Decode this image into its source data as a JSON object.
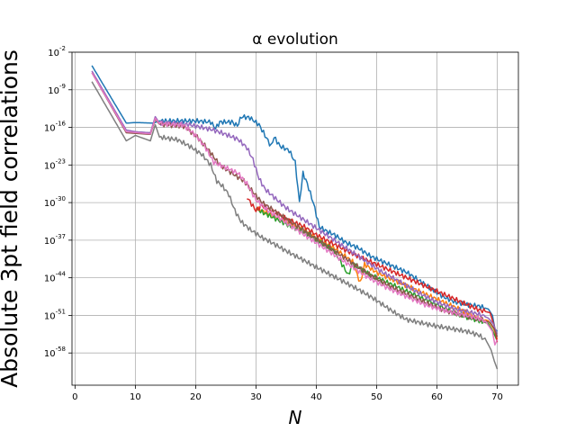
{
  "chart_data": {
    "type": "line",
    "title": "α evolution",
    "xlabel": "N",
    "ylabel": "Absolute 3pt field correlations",
    "xlim": [
      -0.5,
      73.5
    ],
    "ylim": [
      -64,
      -2
    ],
    "y_scale": "log10",
    "grid": true,
    "x_ticks": [
      0,
      10,
      20,
      30,
      40,
      50,
      60,
      70
    ],
    "y_ticks": [
      {
        "value": -2,
        "base": "10",
        "exp": "-2"
      },
      {
        "value": -9,
        "base": "10",
        "exp": "-9"
      },
      {
        "value": -16,
        "base": "10",
        "exp": "-16"
      },
      {
        "value": -23,
        "base": "10",
        "exp": "-23"
      },
      {
        "value": -30,
        "base": "10",
        "exp": "-30"
      },
      {
        "value": -37,
        "base": "10",
        "exp": "-37"
      },
      {
        "value": -44,
        "base": "10",
        "exp": "-44"
      },
      {
        "value": -51,
        "base": "10",
        "exp": "-51"
      },
      {
        "value": -58,
        "base": "10",
        "exp": "-58"
      }
    ],
    "series": [
      {
        "color": "#1f77b4",
        "points": [
          [
            2.8,
            -4.5
          ],
          [
            8.5,
            -15.2
          ],
          [
            10,
            -15.1
          ],
          [
            13,
            -15.2
          ],
          [
            14,
            -14.8
          ],
          [
            20,
            -14.8
          ],
          [
            22.5,
            -15
          ],
          [
            23.3,
            -16.2
          ],
          [
            24,
            -15
          ],
          [
            26,
            -15
          ],
          [
            26.9,
            -15.7
          ],
          [
            27.6,
            -14
          ],
          [
            29,
            -14.2
          ],
          [
            30.5,
            -15.5
          ],
          [
            31.5,
            -17.5
          ],
          [
            32.5,
            -19.5
          ],
          [
            33,
            -17.8
          ],
          [
            34,
            -19.5
          ],
          [
            35.5,
            -20.3
          ],
          [
            36.5,
            -22.5
          ],
          [
            37.2,
            -30
          ],
          [
            37.8,
            -24.5
          ],
          [
            38.5,
            -26.5
          ],
          [
            39.5,
            -30
          ],
          [
            40.5,
            -34.5
          ],
          [
            41.5,
            -35.2
          ],
          [
            43,
            -36
          ],
          [
            45,
            -37.5
          ],
          [
            47,
            -38.5
          ],
          [
            49,
            -40
          ],
          [
            51,
            -41
          ],
          [
            53,
            -42
          ],
          [
            55,
            -43
          ],
          [
            57,
            -44.5
          ],
          [
            59,
            -46
          ],
          [
            61,
            -47.5
          ],
          [
            63,
            -48.5
          ],
          [
            65,
            -49
          ],
          [
            67,
            -49.3
          ],
          [
            68.5,
            -49.8
          ],
          [
            69.2,
            -51
          ],
          [
            69.6,
            -53.5
          ],
          [
            70,
            -54
          ]
        ]
      },
      {
        "color": "#ff7f0e",
        "points": [
          [
            30,
            -31
          ],
          [
            32,
            -32
          ],
          [
            35,
            -33.5
          ],
          [
            38,
            -35
          ],
          [
            40,
            -36.5
          ],
          [
            43,
            -38.5
          ],
          [
            46,
            -41
          ],
          [
            47.3,
            -45
          ],
          [
            48,
            -41.5
          ],
          [
            50,
            -43
          ],
          [
            53,
            -44.5
          ],
          [
            56,
            -46
          ],
          [
            59,
            -47.5
          ],
          [
            62,
            -49
          ],
          [
            65,
            -50.5
          ],
          [
            67,
            -51.5
          ],
          [
            68.5,
            -52
          ],
          [
            69.4,
            -53.5
          ],
          [
            70,
            -55.5
          ]
        ]
      },
      {
        "color": "#2ca02c",
        "points": [
          [
            30,
            -31.2
          ],
          [
            32,
            -32.3
          ],
          [
            35,
            -34
          ],
          [
            38,
            -35.5
          ],
          [
            40,
            -37
          ],
          [
            43,
            -39
          ],
          [
            45.3,
            -43.5
          ],
          [
            46,
            -41.5
          ],
          [
            49,
            -43.5
          ],
          [
            52,
            -45
          ],
          [
            55,
            -46.5
          ],
          [
            58,
            -48
          ],
          [
            61,
            -49.5
          ],
          [
            64,
            -51
          ],
          [
            67,
            -52
          ],
          [
            68.5,
            -52.5
          ],
          [
            69.3,
            -54
          ],
          [
            70,
            -55.8
          ]
        ]
      },
      {
        "color": "#d62728",
        "points": [
          [
            28.5,
            -29
          ],
          [
            30,
            -31.5
          ],
          [
            31,
            -30.5
          ],
          [
            33,
            -31.8
          ],
          [
            35,
            -33
          ],
          [
            38,
            -34.5
          ],
          [
            40,
            -36
          ],
          [
            43,
            -37.8
          ],
          [
            46,
            -39.5
          ],
          [
            49,
            -41
          ],
          [
            52,
            -42.5
          ],
          [
            55,
            -44
          ],
          [
            58,
            -45.5
          ],
          [
            61,
            -47
          ],
          [
            64,
            -48.5
          ],
          [
            67,
            -50
          ],
          [
            68.8,
            -50.5
          ],
          [
            69.5,
            -53
          ],
          [
            70,
            -56
          ]
        ]
      },
      {
        "color": "#9467bd",
        "points": [
          [
            2.8,
            -5.5
          ],
          [
            8.5,
            -16.5
          ],
          [
            10,
            -16.8
          ],
          [
            12.5,
            -17
          ],
          [
            13.3,
            -14
          ],
          [
            14,
            -15.2
          ],
          [
            17,
            -15.3
          ],
          [
            19,
            -15.5
          ],
          [
            21,
            -16
          ],
          [
            23,
            -16.5
          ],
          [
            25,
            -17.3
          ],
          [
            27,
            -18.2
          ],
          [
            28.5,
            -19.8
          ],
          [
            29.5,
            -22
          ],
          [
            30.5,
            -25.5
          ],
          [
            31.5,
            -27.5
          ],
          [
            33,
            -29
          ],
          [
            35,
            -31
          ],
          [
            37,
            -32.5
          ],
          [
            39,
            -34
          ],
          [
            41,
            -35.5
          ],
          [
            43,
            -37
          ],
          [
            45,
            -38.5
          ],
          [
            47,
            -40
          ],
          [
            49,
            -41.5
          ],
          [
            51,
            -43
          ],
          [
            53,
            -44.2
          ],
          [
            55,
            -45.5
          ],
          [
            57,
            -46.8
          ],
          [
            59,
            -48
          ],
          [
            61,
            -49
          ],
          [
            63,
            -49.8
          ],
          [
            65,
            -50.3
          ],
          [
            67,
            -50.8
          ],
          [
            68.5,
            -51.5
          ],
          [
            69.3,
            -52.5
          ],
          [
            70,
            -54.5
          ]
        ]
      },
      {
        "color": "#8c564b",
        "points": [
          [
            2.8,
            -5.8
          ],
          [
            8.5,
            -17
          ],
          [
            12.5,
            -17.3
          ],
          [
            13.3,
            -14.5
          ],
          [
            14,
            -15.4
          ],
          [
            18,
            -15.8
          ],
          [
            20,
            -17.5
          ],
          [
            22,
            -20
          ],
          [
            24,
            -23
          ],
          [
            26,
            -24.5
          ],
          [
            28,
            -26
          ],
          [
            29.5,
            -28
          ],
          [
            31,
            -30
          ],
          [
            33,
            -31.5
          ],
          [
            35,
            -33
          ],
          [
            37,
            -34.5
          ],
          [
            39,
            -36
          ],
          [
            41,
            -37.5
          ],
          [
            43,
            -39
          ],
          [
            45,
            -40.5
          ],
          [
            47,
            -42
          ],
          [
            49,
            -43.5
          ],
          [
            51,
            -44.8
          ],
          [
            53,
            -46
          ],
          [
            55,
            -47
          ],
          [
            57,
            -48
          ],
          [
            59,
            -49
          ],
          [
            61,
            -50
          ],
          [
            63,
            -50.6
          ],
          [
            65,
            -51.2
          ],
          [
            67,
            -51.7
          ],
          [
            68.8,
            -52.3
          ],
          [
            69.5,
            -53.5
          ],
          [
            70,
            -55
          ]
        ]
      },
      {
        "color": "#e377c2",
        "points": [
          [
            2.8,
            -5.8
          ],
          [
            8.5,
            -16.8
          ],
          [
            12.5,
            -17.2
          ],
          [
            13.3,
            -14.3
          ],
          [
            14,
            -15.3
          ],
          [
            18,
            -15.6
          ],
          [
            20,
            -17.5
          ],
          [
            21.5,
            -19.5
          ],
          [
            23,
            -22.5
          ],
          [
            25,
            -23.5
          ],
          [
            27,
            -24.5
          ],
          [
            28.5,
            -26.5
          ],
          [
            30,
            -29.5
          ],
          [
            32,
            -31.5
          ],
          [
            34,
            -33
          ],
          [
            36,
            -34.5
          ],
          [
            38,
            -36
          ],
          [
            40,
            -37.5
          ],
          [
            42,
            -39
          ],
          [
            44,
            -40.5
          ],
          [
            46,
            -42
          ],
          [
            48,
            -43.5
          ],
          [
            50,
            -44.8
          ],
          [
            52,
            -46
          ],
          [
            54,
            -47
          ],
          [
            56,
            -48
          ],
          [
            58,
            -49
          ],
          [
            60,
            -49.7
          ],
          [
            62,
            -50.3
          ],
          [
            64,
            -50.8
          ],
          [
            66,
            -51.3
          ],
          [
            68,
            -52
          ],
          [
            69.2,
            -54
          ],
          [
            69.6,
            -56.5
          ],
          [
            70,
            -55.5
          ]
        ]
      },
      {
        "color": "#7f7f7f",
        "points": [
          [
            2.8,
            -7.5
          ],
          [
            8.5,
            -18.5
          ],
          [
            10,
            -17.5
          ],
          [
            12.5,
            -18.5
          ],
          [
            13.3,
            -15.5
          ],
          [
            14,
            -17.8
          ],
          [
            17,
            -18.3
          ],
          [
            19,
            -19.5
          ],
          [
            21,
            -21
          ],
          [
            22.5,
            -23
          ],
          [
            23.5,
            -26
          ],
          [
            24.5,
            -27
          ],
          [
            25.5,
            -28.5
          ],
          [
            26.5,
            -31.5
          ],
          [
            27.5,
            -33.5
          ],
          [
            29,
            -35
          ],
          [
            31,
            -36.5
          ],
          [
            33,
            -37.7
          ],
          [
            35,
            -39
          ],
          [
            37,
            -40.2
          ],
          [
            39,
            -41.4
          ],
          [
            41,
            -42.6
          ],
          [
            43,
            -43.8
          ],
          [
            45,
            -45
          ],
          [
            47,
            -46.2
          ],
          [
            49,
            -47.5
          ],
          [
            51,
            -49
          ],
          [
            53,
            -50.5
          ],
          [
            55,
            -51.8
          ],
          [
            57,
            -52.3
          ],
          [
            59,
            -52.8
          ],
          [
            61,
            -53.2
          ],
          [
            63,
            -53.6
          ],
          [
            65,
            -54
          ],
          [
            67,
            -54.7
          ],
          [
            68.2,
            -55.8
          ],
          [
            69,
            -57.5
          ],
          [
            69.5,
            -59.5
          ],
          [
            70,
            -61
          ]
        ]
      }
    ]
  }
}
